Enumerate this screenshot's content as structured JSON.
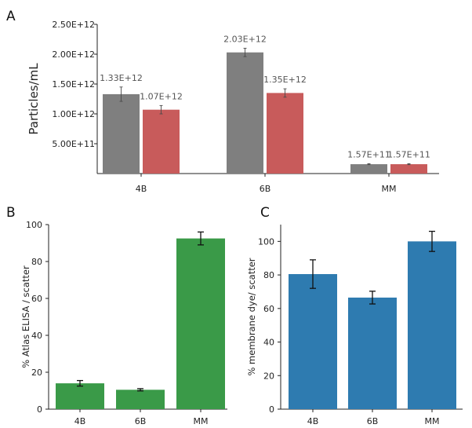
{
  "panels": {
    "a": {
      "letter": "A"
    },
    "b": {
      "letter": "B"
    },
    "c": {
      "letter": "C"
    }
  },
  "chart_data": [
    {
      "type": "bar",
      "panel": "A",
      "title": "",
      "xlabel": "",
      "ylabel": "Particles/mL",
      "ylim": [
        0,
        2500000000000.0
      ],
      "yticks": [
        500000000000.0,
        1000000000000.0,
        1500000000000.0,
        2000000000000.0,
        2500000000000.0
      ],
      "yticklabels": [
        "5.00E+11",
        "1.00E+12",
        "1.50E+12",
        "2.00E+12",
        "2.50E+12"
      ],
      "categories": [
        "4B",
        "6B",
        "MM"
      ],
      "colors": [
        "#7f7f7f",
        "#c85b5b"
      ],
      "series": [
        {
          "name": "series 1",
          "values": [
            1330000000000.0,
            2030000000000.0,
            157000000000.0
          ],
          "errors": [
            120000000000.0,
            70000000000.0,
            8000000000.0
          ],
          "labels": [
            "1.33E+12",
            "2.03E+12",
            "1.57E+11"
          ]
        },
        {
          "name": "series 2",
          "values": [
            1070000000000.0,
            1350000000000.0,
            157000000000.0
          ],
          "errors": [
            70000000000.0,
            70000000000.0,
            8000000000.0
          ],
          "labels": [
            "1.07E+12",
            "1.35E+12",
            "1.57E+11"
          ]
        }
      ]
    },
    {
      "type": "bar",
      "panel": "B",
      "title": "",
      "xlabel": "",
      "ylabel": "% Atlas ELISA / scatter",
      "ylim": [
        0,
        100
      ],
      "yticks": [
        0,
        20,
        40,
        60,
        80,
        100
      ],
      "yticklabels": [
        "0",
        "20",
        "40",
        "60",
        "80",
        "100"
      ],
      "categories": [
        "4B",
        "6B",
        "MM"
      ],
      "color": "#3a9a48",
      "values": [
        14,
        10.5,
        92.5
      ],
      "errors": [
        1.5,
        0.6,
        3.5
      ]
    },
    {
      "type": "bar",
      "panel": "C",
      "title": "",
      "xlabel": "",
      "ylabel": "% membrane dye/ scatter",
      "ylim": [
        0,
        110
      ],
      "yticks": [
        0,
        20,
        40,
        60,
        80,
        100
      ],
      "yticklabels": [
        "0",
        "20",
        "40",
        "60",
        "80",
        "100"
      ],
      "categories": [
        "4B",
        "6B",
        "MM"
      ],
      "color": "#2e7bb0",
      "values": [
        80.5,
        66.5,
        100
      ],
      "errors": [
        8.5,
        3.8,
        6.0
      ]
    }
  ]
}
